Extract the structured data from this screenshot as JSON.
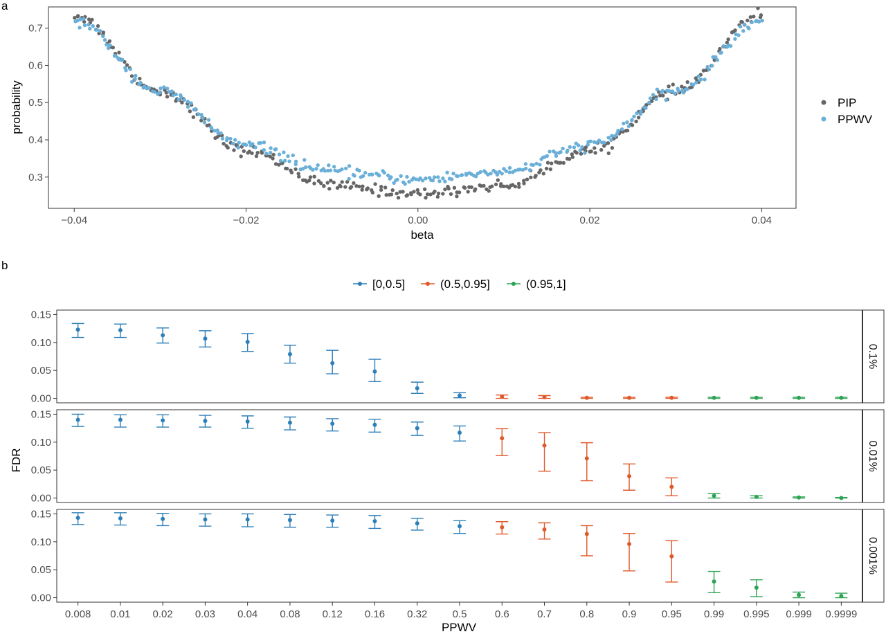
{
  "panel_a": {
    "letter": "a",
    "chart_data": {
      "type": "scatter",
      "xlabel": "beta",
      "ylabel": "probability",
      "xlim": [
        -0.043,
        0.044
      ],
      "ylim": [
        0.216,
        0.757
      ],
      "x_ticks": [
        -0.04,
        -0.02,
        0.0,
        0.02,
        0.04
      ],
      "x_tick_labels": [
        "−0.04",
        "−0.02",
        "0.00",
        "0.02",
        "0.04"
      ],
      "y_ticks": [
        0.3,
        0.4,
        0.5,
        0.6,
        0.7
      ],
      "y_tick_labels": [
        "0.3",
        "0.4",
        "0.5",
        "0.6",
        "0.7"
      ],
      "legend_position": "right",
      "grid": false,
      "n_points_per_series": 300,
      "series": [
        {
          "name": "PIP",
          "color": "#666666",
          "x": [
            -0.04,
            -0.03,
            -0.02,
            -0.01,
            0.0,
            0.01,
            0.02,
            0.03,
            0.04
          ],
          "y": [
            0.735,
            0.53,
            0.37,
            0.277,
            0.255,
            0.277,
            0.37,
            0.53,
            0.735
          ]
        },
        {
          "name": "PPWV",
          "color": "#6aafd8",
          "x": [
            -0.04,
            -0.03,
            -0.02,
            -0.01,
            0.0,
            0.01,
            0.02,
            0.03,
            0.04
          ],
          "y": [
            0.72,
            0.53,
            0.385,
            0.315,
            0.293,
            0.315,
            0.385,
            0.53,
            0.72
          ]
        }
      ]
    }
  },
  "panel_b": {
    "letter": "b",
    "chart_data": {
      "type": "errorbar",
      "xlabel": "PPWV",
      "ylabel": "FDR",
      "categories": [
        "0.008",
        "0.01",
        "0.02",
        "0.03",
        "0.04",
        "0.08",
        "0.12",
        "0.16",
        "0.32",
        "0.5",
        "0.6",
        "0.7",
        "0.8",
        "0.9",
        "0.95",
        "0.99",
        "0.995",
        "0.999",
        "0.9999"
      ],
      "category_group": [
        0,
        0,
        0,
        0,
        0,
        0,
        0,
        0,
        0,
        0,
        1,
        1,
        1,
        1,
        1,
        2,
        2,
        2,
        2
      ],
      "groups": [
        {
          "name": "[0,0.5]",
          "color": "#2e7fb8"
        },
        {
          "name": "(0.5,0.95]",
          "color": "#e0592a"
        },
        {
          "name": "(0.95,1]",
          "color": "#2da354"
        }
      ],
      "ylim": [
        -0.008,
        0.158
      ],
      "y_ticks": [
        0.0,
        0.05,
        0.1,
        0.15
      ],
      "y_tick_labels": [
        "0.00",
        "0.05",
        "0.10",
        "0.15"
      ],
      "legend_position": "top",
      "facets": [
        {
          "label": "0.1%",
          "mean": [
            0.123,
            0.122,
            0.113,
            0.107,
            0.101,
            0.079,
            0.063,
            0.048,
            0.018,
            0.005,
            0.003,
            0.002,
            0.001,
            0.001,
            0.001,
            0.001,
            0.001,
            0.001,
            0.001
          ],
          "lower": [
            0.109,
            0.109,
            0.099,
            0.092,
            0.084,
            0.063,
            0.044,
            0.03,
            0.009,
            0.001,
            0.0,
            0.0,
            0.0,
            0.0,
            0.0,
            0.0,
            0.0,
            0.0,
            0.0
          ],
          "upper": [
            0.134,
            0.133,
            0.126,
            0.121,
            0.116,
            0.095,
            0.086,
            0.07,
            0.029,
            0.01,
            0.006,
            0.005,
            0.002,
            0.002,
            0.002,
            0.002,
            0.002,
            0.002,
            0.002
          ]
        },
        {
          "label": "0.01%",
          "mean": [
            0.14,
            0.14,
            0.139,
            0.138,
            0.137,
            0.135,
            0.133,
            0.131,
            0.125,
            0.117,
            0.107,
            0.094,
            0.071,
            0.039,
            0.02,
            0.004,
            0.002,
            0.001,
            0.0
          ],
          "lower": [
            0.128,
            0.127,
            0.127,
            0.127,
            0.125,
            0.122,
            0.12,
            0.118,
            0.112,
            0.102,
            0.076,
            0.048,
            0.031,
            0.014,
            0.004,
            0.0,
            0.0,
            0.0,
            0.0
          ],
          "upper": [
            0.15,
            0.149,
            0.149,
            0.148,
            0.147,
            0.145,
            0.142,
            0.141,
            0.136,
            0.129,
            0.124,
            0.117,
            0.099,
            0.061,
            0.036,
            0.008,
            0.004,
            0.002,
            0.001
          ]
        },
        {
          "label": "0.001%",
          "mean": [
            0.143,
            0.142,
            0.141,
            0.14,
            0.14,
            0.139,
            0.138,
            0.137,
            0.133,
            0.128,
            0.126,
            0.122,
            0.114,
            0.096,
            0.074,
            0.029,
            0.018,
            0.005,
            0.003
          ],
          "lower": [
            0.131,
            0.13,
            0.129,
            0.128,
            0.127,
            0.126,
            0.126,
            0.124,
            0.121,
            0.115,
            0.114,
            0.105,
            0.075,
            0.048,
            0.028,
            0.009,
            0.002,
            0.0,
            0.0
          ],
          "upper": [
            0.152,
            0.152,
            0.151,
            0.15,
            0.15,
            0.149,
            0.148,
            0.147,
            0.142,
            0.138,
            0.136,
            0.134,
            0.129,
            0.115,
            0.102,
            0.047,
            0.032,
            0.01,
            0.008
          ]
        }
      ]
    }
  }
}
